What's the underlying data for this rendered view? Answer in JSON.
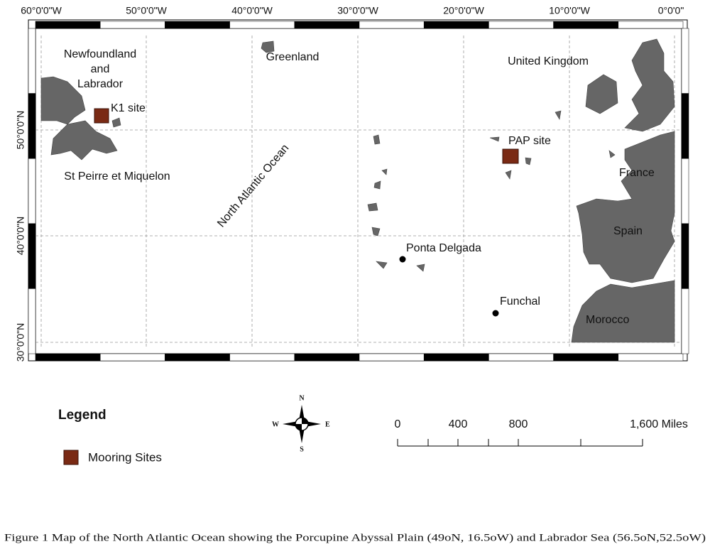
{
  "map": {
    "longitude_labels": [
      "60°0'0\"W",
      "50°0'0\"W",
      "40°0'0\"W",
      "30°0'0\"W",
      "20°0'0\"W",
      "10°0'0\"W",
      "0°0'0\""
    ],
    "latitude_labels": [
      "50°0'0\"N",
      "40°0'0\"N",
      "30°0'0\"N"
    ],
    "places": [
      {
        "label": [
          "Newfoundland",
          "and",
          "Labrador"
        ]
      },
      {
        "label": [
          "Greenland"
        ]
      },
      {
        "label": [
          "United Kingdom"
        ]
      },
      {
        "label": [
          "K1 site"
        ]
      },
      {
        "label": [
          "St Peirre et Miquelon"
        ]
      },
      {
        "label": [
          "North Atlantic Ocean"
        ]
      },
      {
        "label": [
          "PAP site"
        ]
      },
      {
        "label": [
          "France"
        ]
      },
      {
        "label": [
          "Spain"
        ]
      },
      {
        "label": [
          "Ponta Delgada"
        ]
      },
      {
        "label": [
          "Funchal"
        ]
      },
      {
        "label": [
          "Morocco"
        ]
      }
    ]
  },
  "legend": {
    "title": "Legend",
    "item": "Mooring Sites"
  },
  "compass": {
    "north": "N",
    "south": "S",
    "east": "E",
    "west": "W"
  },
  "scale": {
    "labels": [
      "0",
      "400",
      "800",
      "1,600 Miles"
    ]
  },
  "caption": "Figure 1 Map of the North Atlantic Ocean showing the Porcupine Abyssal Plain (49oN, 16.5oW) and Labrador Sea (56.5oN,52.5oW)"
}
